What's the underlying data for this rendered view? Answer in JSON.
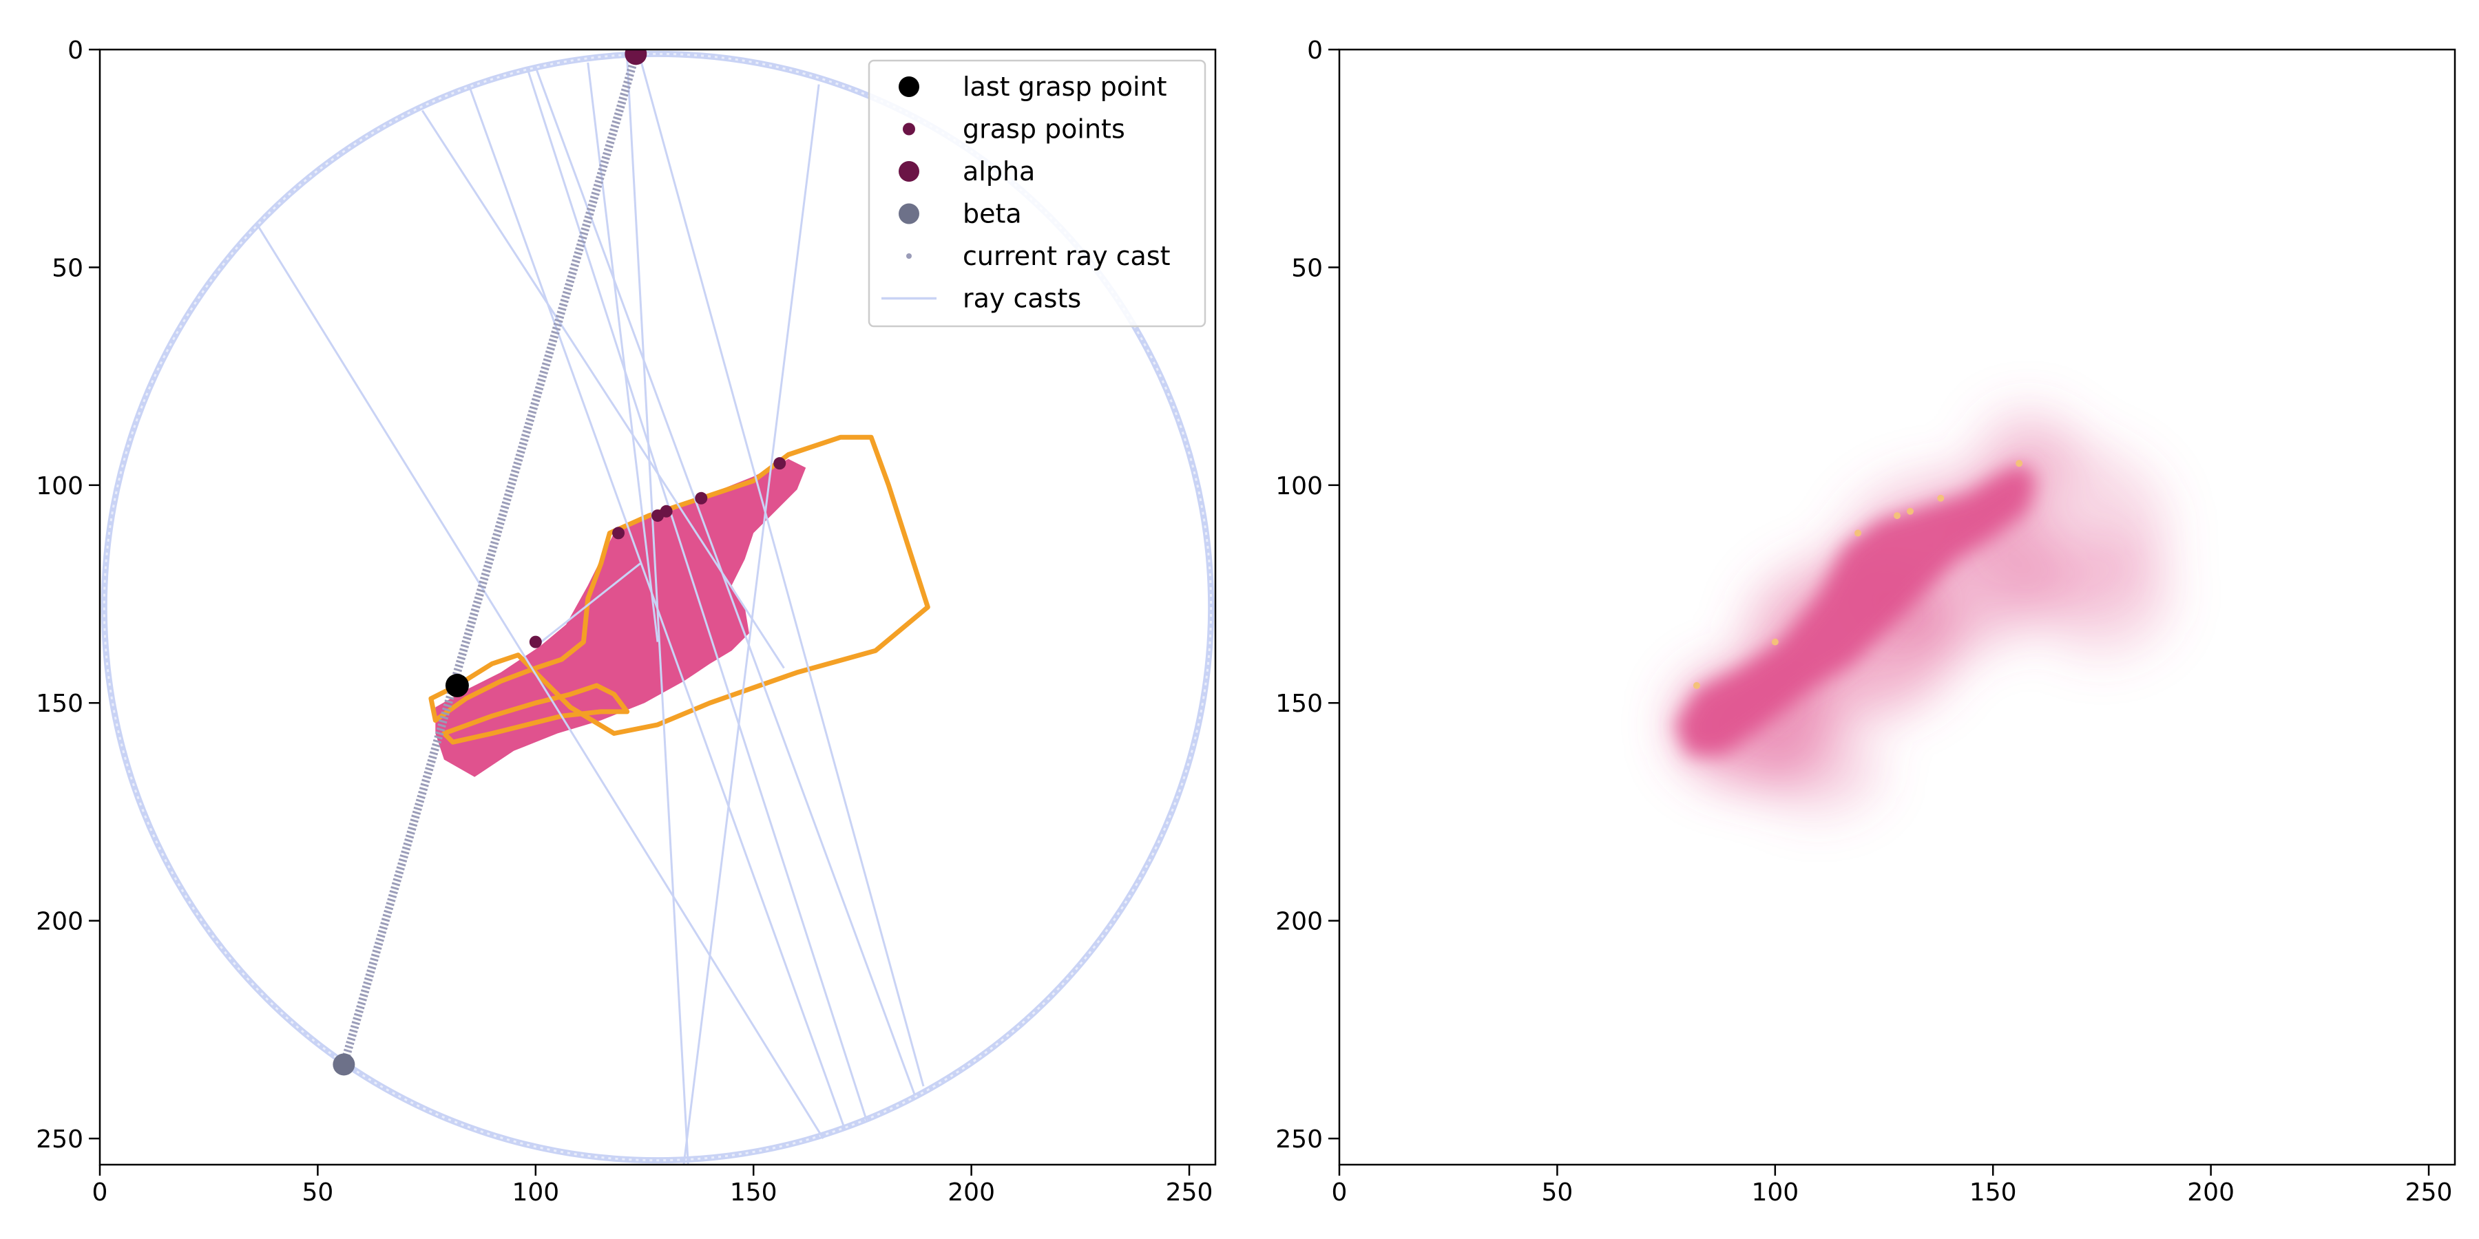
{
  "chart_data": [
    {
      "type": "scatter",
      "panel": "left",
      "xlim": [
        0,
        256
      ],
      "ylim": [
        256,
        0
      ],
      "y_inverted": true,
      "grid": false,
      "x_ticks": [
        {
          "value": 0,
          "label": "0"
        },
        {
          "value": 50,
          "label": "50"
        },
        {
          "value": 100,
          "label": "100"
        },
        {
          "value": 150,
          "label": "150"
        },
        {
          "value": 200,
          "label": "200"
        },
        {
          "value": 250,
          "label": "250"
        }
      ],
      "y_ticks": [
        {
          "value": 0,
          "label": "0"
        },
        {
          "value": 50,
          "label": "50"
        },
        {
          "value": 100,
          "label": "100"
        },
        {
          "value": 150,
          "label": "150"
        },
        {
          "value": 200,
          "label": "200"
        },
        {
          "value": 250,
          "label": "250"
        }
      ],
      "legend": {
        "placement": "upper-right",
        "entries": [
          {
            "label": "last grasp point",
            "marker": "large-dot",
            "color": "#000000"
          },
          {
            "label": "grasp points",
            "marker": "small-dot",
            "color": "#6b1446"
          },
          {
            "label": "alpha",
            "marker": "large-dot",
            "color": "#6b1446"
          },
          {
            "label": "beta",
            "marker": "large-dot",
            "color": "#6d7189"
          },
          {
            "label": "current ray cast",
            "marker": "tiny-dot",
            "color": "#9a9cb8"
          },
          {
            "label": "ray casts",
            "marker": "line",
            "color": "#c9d3f5"
          }
        ]
      },
      "circle": {
        "center": [
          128,
          128
        ],
        "radius": 127,
        "color": "#c9d3f5"
      },
      "object_mask": {
        "color": "#e0528e",
        "polygon": [
          [
            77,
            151
          ],
          [
            84,
            147
          ],
          [
            92,
            143
          ],
          [
            101,
            137
          ],
          [
            107,
            132
          ],
          [
            112,
            123
          ],
          [
            115,
            117
          ],
          [
            118,
            111
          ],
          [
            124,
            108
          ],
          [
            131,
            106
          ],
          [
            140,
            102
          ],
          [
            150,
            98
          ],
          [
            158,
            94
          ],
          [
            162,
            96
          ],
          [
            160,
            101
          ],
          [
            155,
            106
          ],
          [
            150,
            111
          ],
          [
            148,
            117
          ],
          [
            145,
            123
          ],
          [
            148,
            128
          ],
          [
            149,
            134
          ],
          [
            145,
            138
          ],
          [
            140,
            141
          ],
          [
            134,
            145
          ],
          [
            125,
            150
          ],
          [
            115,
            154
          ],
          [
            105,
            157
          ],
          [
            95,
            161
          ],
          [
            86,
            167
          ],
          [
            79,
            163
          ],
          [
            77,
            157
          ]
        ]
      },
      "outline": {
        "color": "#f4a025",
        "polygon": [
          [
            75,
            159
          ],
          [
            96,
            152
          ],
          [
            106,
            149
          ],
          [
            110,
            146
          ],
          [
            118,
            144
          ],
          [
            125,
            139
          ],
          [
            131,
            137
          ],
          [
            137,
            136
          ],
          [
            142,
            135
          ],
          [
            155,
            131
          ],
          [
            162,
            126
          ],
          [
            166,
            120
          ],
          [
            171,
            115
          ],
          [
            176,
            112
          ],
          [
            180,
            107
          ],
          [
            181,
            103
          ],
          [
            183,
            98
          ],
          [
            186,
            95
          ],
          [
            185,
            91
          ],
          [
            181,
            90
          ],
          [
            176,
            89
          ],
          [
            172,
            88
          ],
          [
            168,
            89
          ],
          [
            162,
            92
          ],
          [
            157,
            94
          ],
          [
            155,
            97
          ],
          [
            149,
            100
          ],
          [
            141,
            104
          ],
          [
            133,
            106
          ],
          [
            124,
            108
          ],
          [
            115,
            112
          ],
          [
            109,
            115
          ],
          [
            103,
            118
          ],
          [
            98,
            123
          ],
          [
            92,
            129
          ],
          [
            86,
            136
          ],
          [
            80,
            142
          ],
          [
            76,
            149
          ],
          [
            74,
            154
          ]
        ]
      },
      "outline_extra": {
        "color": "#f4a025",
        "polygon": [
          [
            117,
            111
          ],
          [
            126,
            107
          ],
          [
            138,
            103
          ],
          [
            150,
            99
          ],
          [
            158,
            93
          ],
          [
            170,
            89
          ],
          [
            177,
            89
          ],
          [
            181,
            100
          ],
          [
            190,
            128
          ],
          [
            178,
            138
          ],
          [
            160,
            143
          ],
          [
            140,
            150
          ],
          [
            128,
            155
          ],
          [
            118,
            157
          ],
          [
            108,
            151
          ],
          [
            101,
            144
          ],
          [
            96,
            139
          ],
          [
            90,
            141
          ],
          [
            82,
            146
          ],
          [
            76,
            149
          ],
          [
            77,
            154
          ],
          [
            84,
            149
          ],
          [
            92,
            145
          ],
          [
            100,
            142
          ],
          [
            106,
            140
          ],
          [
            111,
            136
          ],
          [
            112,
            126
          ],
          [
            115,
            118
          ],
          [
            117,
            111
          ]
        ]
      },
      "outline_inner": {
        "color": "#f4a025",
        "polygon": [
          [
            79,
            157
          ],
          [
            90,
            153
          ],
          [
            100,
            150
          ],
          [
            108,
            148
          ],
          [
            114,
            146
          ],
          [
            118,
            148
          ],
          [
            121,
            152
          ],
          [
            115,
            152
          ],
          [
            106,
            153
          ],
          [
            98,
            155
          ],
          [
            90,
            157
          ],
          [
            81,
            159
          ]
        ]
      },
      "ray_casts": [
        {
          "start": [
            74,
            14
          ],
          "end": [
            157,
            142
          ]
        },
        {
          "start": [
            85,
            9
          ],
          "end": [
            171,
            248
          ]
        },
        {
          "start": [
            98,
            4
          ],
          "end": [
            176,
            246
          ]
        },
        {
          "start": [
            100,
            4
          ],
          "end": [
            187,
            240
          ]
        },
        {
          "start": [
            112,
            3
          ],
          "end": [
            128,
            136
          ]
        },
        {
          "start": [
            121,
            2
          ],
          "end": [
            135,
            256
          ]
        },
        {
          "start": [
            124,
            2
          ],
          "end": [
            189,
            238
          ]
        },
        {
          "start": [
            165,
            8
          ],
          "end": [
            134,
            256
          ]
        },
        {
          "start": [
            36,
            40
          ],
          "end": [
            166,
            250
          ]
        },
        {
          "start": [
            100,
            137
          ],
          "end": [
            124,
            118
          ]
        }
      ],
      "current_ray_cast": {
        "start": [
          123,
          1
        ],
        "end": [
          56,
          233
        ],
        "color": "#9a9cb8"
      },
      "grasp_points": {
        "color": "#6b1446",
        "x": [
          100,
          119,
          128,
          130,
          138,
          156
        ],
        "y": [
          136,
          111,
          107,
          106,
          103,
          95
        ]
      },
      "last_grasp_point": {
        "x": 82,
        "y": 146,
        "color": "#000000"
      },
      "alpha": {
        "x": 123,
        "y": 1,
        "color": "#6b1446"
      },
      "beta": {
        "x": 56,
        "y": 233,
        "color": "#6d7189"
      }
    },
    {
      "type": "heatmap",
      "panel": "right",
      "xlim": [
        0,
        256
      ],
      "ylim": [
        256,
        0
      ],
      "y_inverted": true,
      "grid": false,
      "x_ticks": [
        {
          "value": 0,
          "label": "0"
        },
        {
          "value": 50,
          "label": "50"
        },
        {
          "value": 100,
          "label": "100"
        },
        {
          "value": 150,
          "label": "150"
        },
        {
          "value": 200,
          "label": "200"
        },
        {
          "value": 250,
          "label": "250"
        }
      ],
      "y_ticks": [
        {
          "value": 0,
          "label": "0"
        },
        {
          "value": 50,
          "label": "50"
        },
        {
          "value": 100,
          "label": "100"
        },
        {
          "value": 150,
          "label": "150"
        },
        {
          "value": 200,
          "label": "200"
        },
        {
          "value": 250,
          "label": "250"
        }
      ],
      "color": "#e0528e",
      "core_polygon": [
        [
          77,
          155
        ],
        [
          82,
          147
        ],
        [
          92,
          142
        ],
        [
          101,
          136
        ],
        [
          110,
          125
        ],
        [
          116,
          114
        ],
        [
          124,
          108
        ],
        [
          134,
          105
        ],
        [
          144,
          102
        ],
        [
          152,
          97
        ],
        [
          157,
          95
        ],
        [
          160,
          99
        ],
        [
          158,
          106
        ],
        [
          150,
          112
        ],
        [
          142,
          117
        ],
        [
          134,
          125
        ],
        [
          126,
          133
        ],
        [
          118,
          141
        ],
        [
          108,
          147
        ],
        [
          98,
          155
        ],
        [
          88,
          162
        ],
        [
          80,
          162
        ]
      ],
      "blobs": [
        {
          "center": [
            95,
            155
          ],
          "radius": [
            18,
            14
          ],
          "opacity": 0.55
        },
        {
          "center": [
            118,
            135
          ],
          "radius": [
            24,
            18
          ],
          "opacity": 0.45
        },
        {
          "center": [
            140,
            118
          ],
          "radius": [
            25,
            20
          ],
          "opacity": 0.35
        },
        {
          "center": [
            165,
            110
          ],
          "radius": [
            25,
            20
          ],
          "opacity": 0.22
        },
        {
          "center": [
            175,
            125
          ],
          "radius": [
            16,
            14
          ],
          "opacity": 0.22
        },
        {
          "center": [
            158,
            93
          ],
          "radius": [
            11,
            10
          ],
          "opacity": 0.28
        },
        {
          "center": [
            110,
            165
          ],
          "radius": [
            14,
            10
          ],
          "opacity": 0.25
        }
      ],
      "grasp_points": {
        "color": "#f4c17a",
        "x": [
          82,
          100,
          119,
          128,
          131,
          138,
          156
        ],
        "y": [
          146,
          136,
          111,
          107,
          106,
          103,
          95
        ]
      }
    }
  ]
}
